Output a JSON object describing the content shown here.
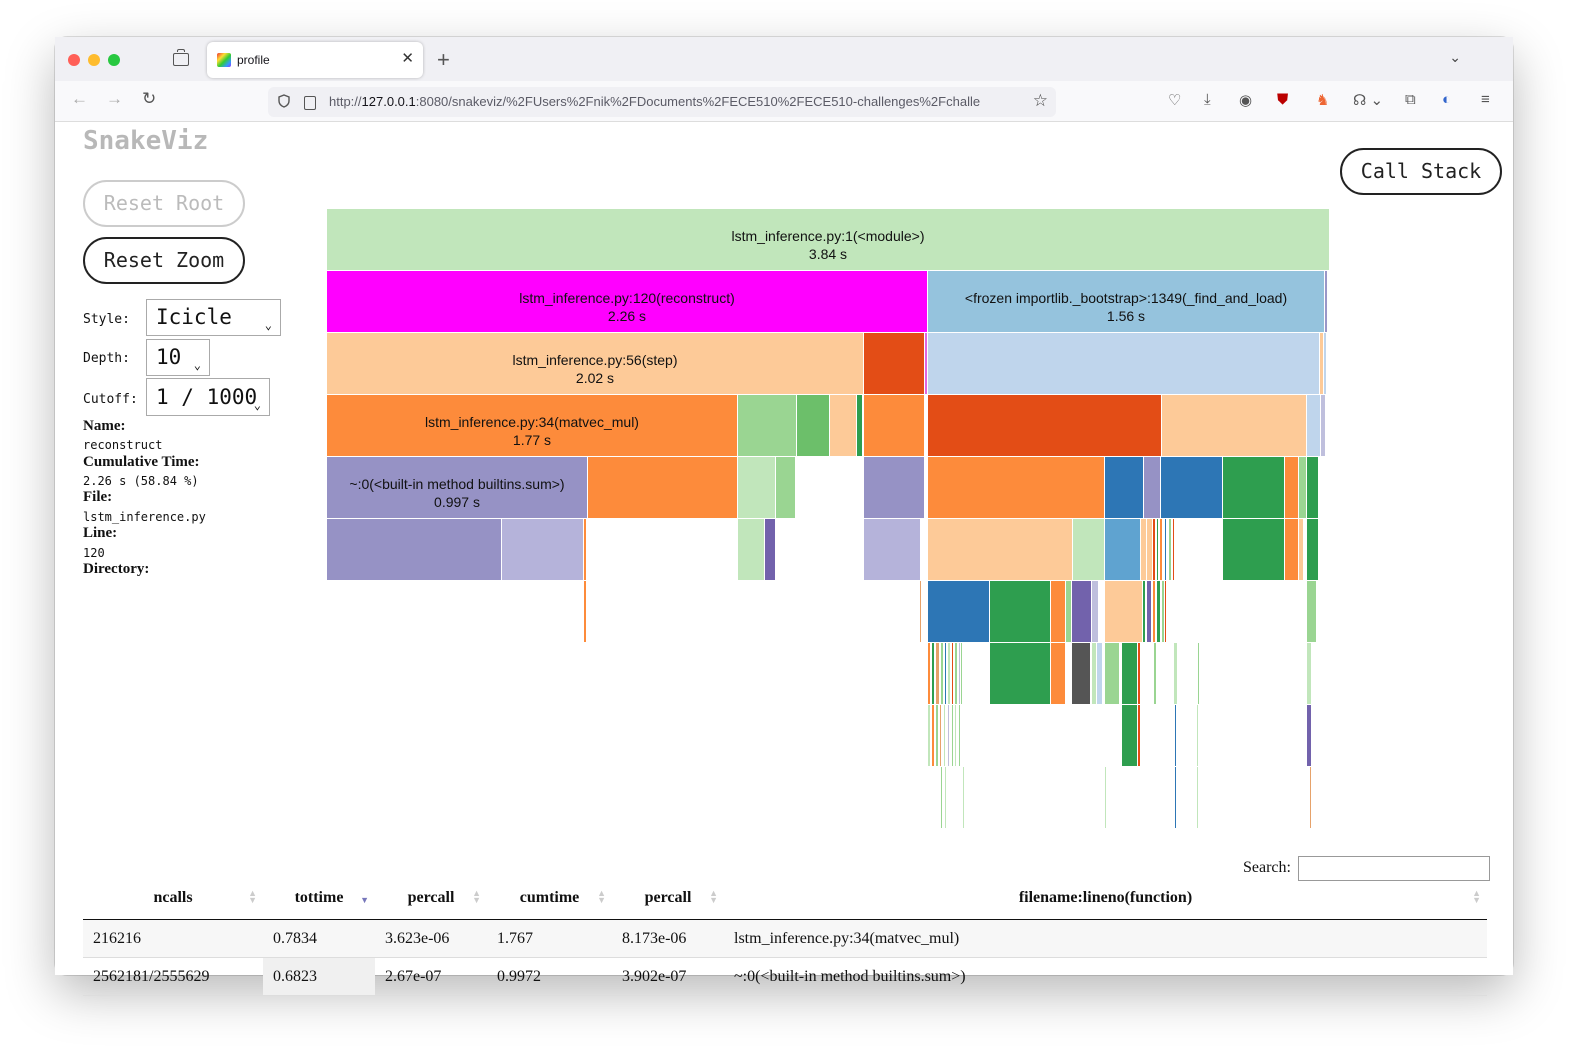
{
  "browser": {
    "tab_title": "profile",
    "url_prefix": "http://",
    "url_host": "127.0.0.1",
    "url_rest": ":8080/snakeviz/%2FUsers%2Fnik%2FDocuments%2FECE510%2FECE510-challenges%2Fchalle"
  },
  "app": {
    "logo": "SnakeViz",
    "reset_root": "Reset Root",
    "reset_zoom": "Reset Zoom",
    "call_stack": "Call Stack"
  },
  "controls": {
    "style_label": "Style:",
    "style_value": "Icicle",
    "depth_label": "Depth:",
    "depth_value": "10",
    "cutoff_label": "Cutoff:",
    "cutoff_value": "1 / 1000"
  },
  "info": {
    "name_label": "Name:",
    "name_value": "reconstruct",
    "cumtime_label": "Cumulative Time:",
    "cumtime_value": "2.26 s (58.84 %)",
    "file_label": "File:",
    "file_value": "lstm_inference.py",
    "line_label": "Line:",
    "line_value": "120",
    "dir_label": "Directory:"
  },
  "flame": {
    "labeled": [
      {
        "l1": "lstm_inference.py:1(<module>)",
        "l2": "3.84 s"
      },
      {
        "l1": "lstm_inference.py:120(reconstruct)",
        "l2": "2.26 s"
      },
      {
        "l1": "<frozen importlib._bootstrap>:1349(_find_and_load)",
        "l2": "1.56 s"
      },
      {
        "l1": "lstm_inference.py:56(step)",
        "l2": "2.02 s"
      },
      {
        "l1": "lstm_inference.py:34(matvec_mul)",
        "l2": "1.77 s"
      },
      {
        "l1": "~:0(<built-in method builtins.sum>)",
        "l2": "0.997 s"
      }
    ]
  },
  "table": {
    "search_label": "Search:",
    "headers": [
      "ncalls",
      "tottime",
      "percall",
      "cumtime",
      "percall",
      "filename:lineno(function)"
    ],
    "rows": [
      [
        "216216",
        "0.7834",
        "3.623e-06",
        "1.767",
        "8.173e-06",
        "lstm_inference.py:34(matvec_mul)"
      ],
      [
        "2562181/2555629",
        "0.6823",
        "2.67e-07",
        "0.9972",
        "3.902e-07",
        "~:0(<built-in method builtins.sum>)"
      ]
    ]
  }
}
